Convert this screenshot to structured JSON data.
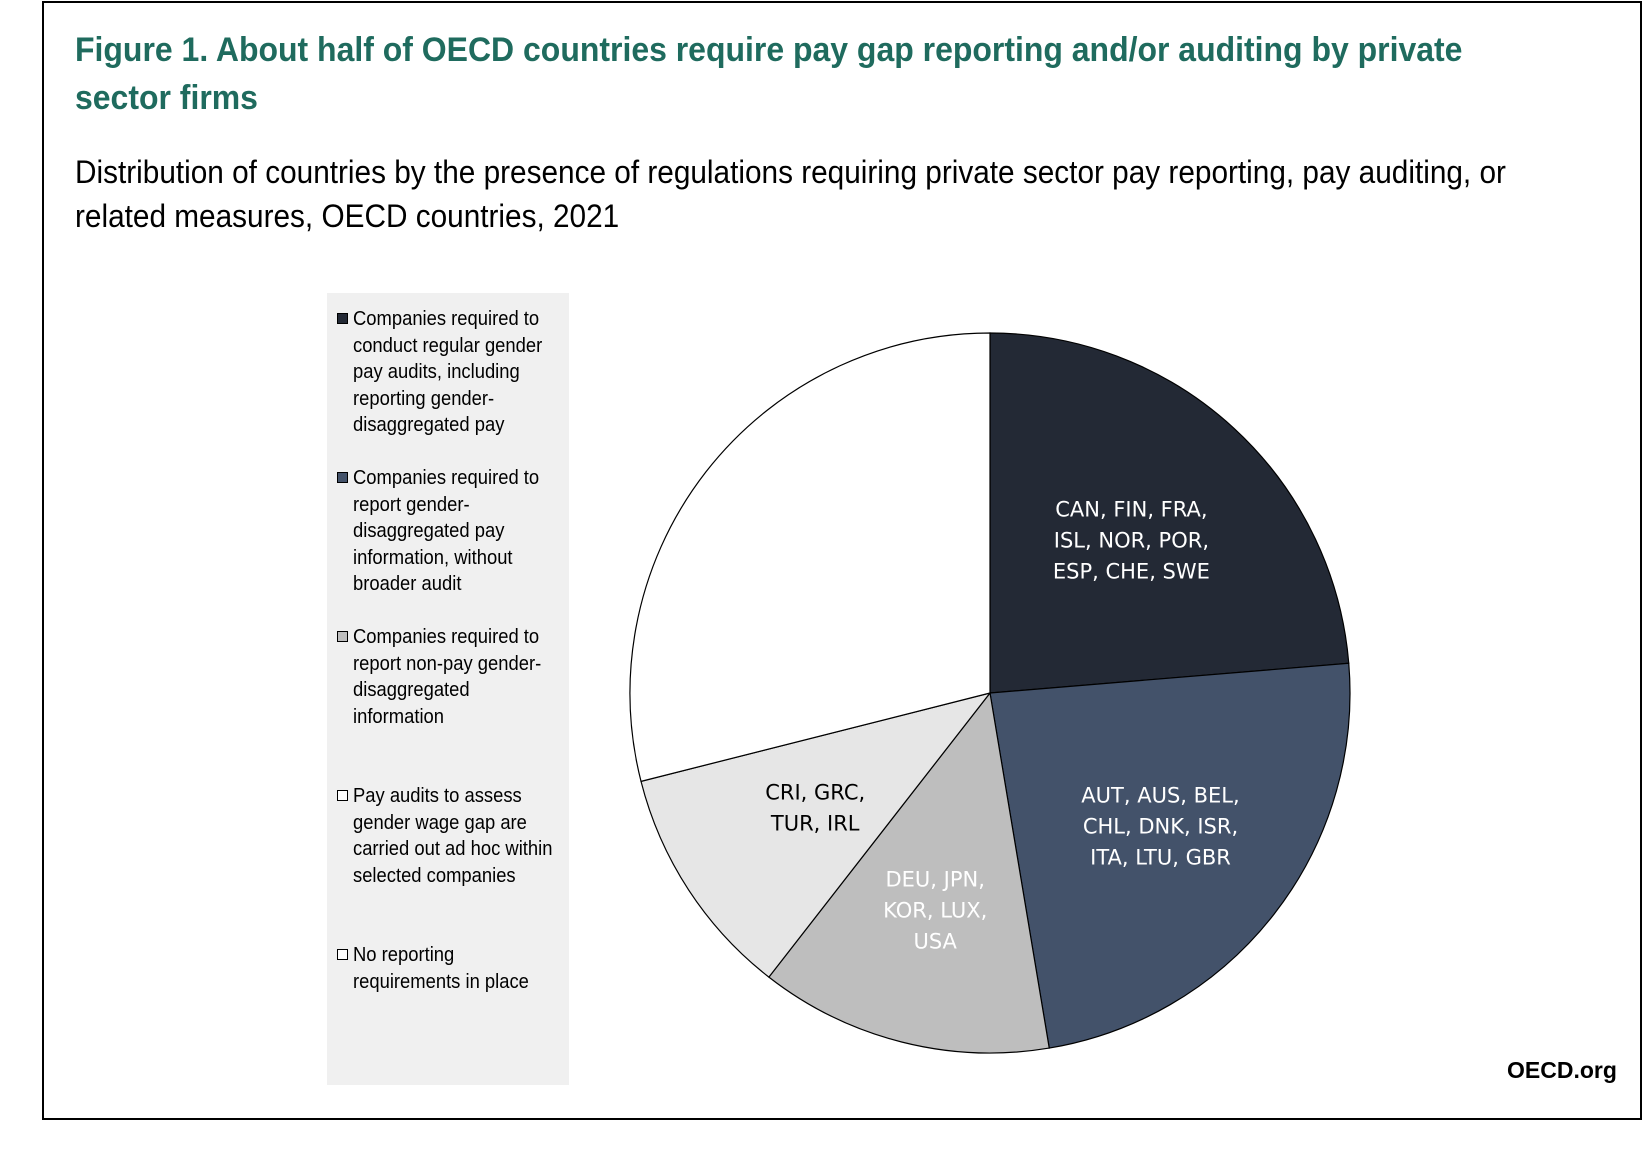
{
  "figure": {
    "title": "Figure 1. About half of OECD countries require pay gap reporting and/or auditing by private sector firms",
    "subtitle": "Distribution of countries by the presence of regulations requiring private sector pay reporting, pay auditing, or related measures, OECD countries, 2021",
    "brand": "OECD.org"
  },
  "chart_data": {
    "type": "pie",
    "title": "Figure 1. About half of OECD countries require pay gap reporting and/or auditing by private sector firms",
    "subtitle": "Distribution of countries by the presence of regulations requiring private sector pay reporting, pay auditing, or related measures, OECD countries, 2021",
    "legend_position": "left",
    "start_angle": "12 o'clock, clockwise",
    "slices": [
      {
        "legend": "Companies required to conduct regular gender pay audits, including reporting gender-disaggregated pay",
        "value": 9,
        "label_lines": [
          "CAN, FIN, FRA,",
          "ISL, NOR, POR,",
          "ESP, CHE, SWE"
        ],
        "color": "#232935",
        "label_color": "#ffffff"
      },
      {
        "legend": "Companies required to report gender-disaggregated pay information, without broader audit",
        "value": 9,
        "label_lines": [
          "AUT, AUS, BEL,",
          "CHL, DNK, ISR,",
          "ITA, LTU, GBR"
        ],
        "color": "#43526a",
        "label_color": "#ffffff"
      },
      {
        "legend": "Companies required to report non-pay gender-disaggregated information",
        "value": 5,
        "label_lines": [
          "DEU, JPN,",
          "KOR, LUX,",
          "USA"
        ],
        "color": "#bebebe",
        "label_color": "#ffffff"
      },
      {
        "legend": "Pay audits to assess gender wage gap are carried out ad hoc within selected companies",
        "value": 4,
        "label_lines": [
          "CRI, GRC,",
          "TUR, IRL"
        ],
        "color": "#e6e6e6",
        "label_color": "#000000"
      },
      {
        "legend": "No reporting requirements in place",
        "value": 11,
        "label_lines": [],
        "color": "#ffffff",
        "label_color": "#000000"
      }
    ]
  }
}
